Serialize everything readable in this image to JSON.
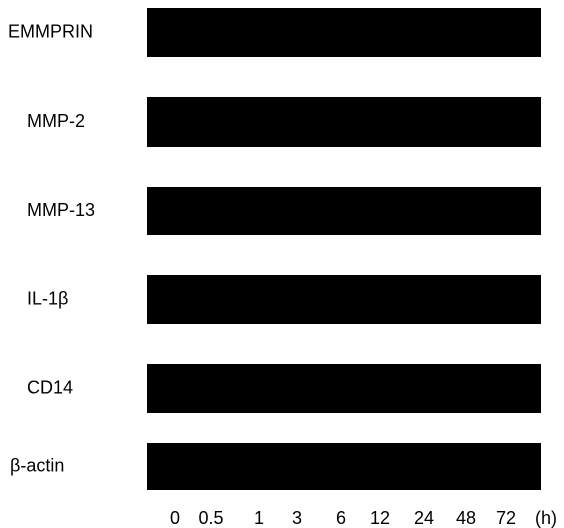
{
  "rows": [
    "EMMPRIN",
    "MMP-2",
    "MMP-13",
    "IL-1β",
    "CD14",
    "β-actin"
  ],
  "lanes": [
    "0",
    "0.5",
    "1",
    "3",
    "6",
    "12",
    "24",
    "48",
    "72"
  ],
  "unit": "(h)"
}
